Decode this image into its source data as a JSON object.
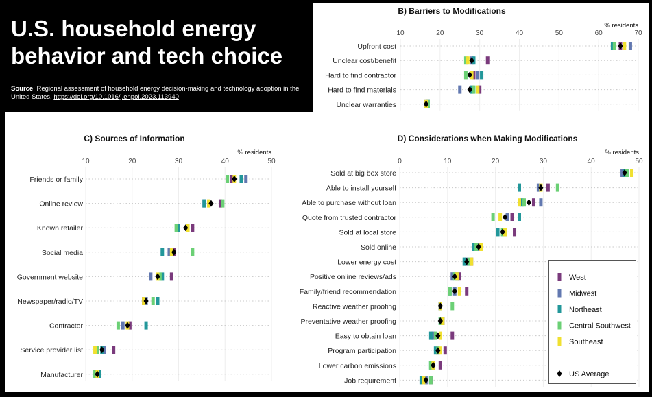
{
  "title": "U.S. household energy behavior and tech choice",
  "source_label": "Source",
  "source_text": ": Regional assessment of household energy decision-making and technology adoption in the United States, ",
  "source_url": "https://doi.org/10.1016/j.enpol.2023.113940",
  "legend": {
    "West": "#7a3a7c",
    "Midwest": "#6278b0",
    "Northeast": "#22979a",
    "Central Southwest": "#6bd075",
    "Southeast": "#f0e030",
    "US Average": "#000000"
  },
  "legend_order": [
    "West",
    "Midwest",
    "Northeast",
    "Central Southwest",
    "Southeast",
    "US Average"
  ],
  "chart_data": [
    {
      "id": "B",
      "type": "scatter",
      "title": "B) Barriers to Modifications",
      "ylabel": "% residents",
      "xlim": [
        10,
        70
      ],
      "ticks": [
        10,
        20,
        30,
        40,
        50,
        60,
        70
      ],
      "categories": [
        "Upfront cost",
        "Unclear cost/benefit",
        "Hard to find contractor",
        "Hard to find materials",
        "Unclear warranties"
      ],
      "series": [
        {
          "name": "West",
          "values": [
            65.5,
            32,
            28.5,
            30,
            17
          ]
        },
        {
          "name": "Midwest",
          "values": [
            68,
            28,
            29.5,
            25,
            16.5
          ]
        },
        {
          "name": "Northeast",
          "values": [
            63.5,
            28.5,
            30.5,
            28,
            17
          ]
        },
        {
          "name": "Central Southwest",
          "values": [
            64,
            26.5,
            26.5,
            28.5,
            17
          ]
        },
        {
          "name": "Southeast",
          "values": [
            66.5,
            27,
            28,
            29.5,
            16.5
          ]
        },
        {
          "name": "US Average",
          "values": [
            65.5,
            28,
            27.5,
            27.5,
            16.5
          ]
        }
      ]
    },
    {
      "id": "C",
      "type": "scatter",
      "title": "C) Sources of Information",
      "ylabel": "% residents",
      "xlim": [
        10,
        50
      ],
      "ticks": [
        10,
        20,
        30,
        40,
        50
      ],
      "categories": [
        "Friends or family",
        "Online review",
        "Known retailer",
        "Social media",
        "Government website",
        "Newspaper/radio/TV",
        "Contractor",
        "Service provider list",
        "Manufacturer"
      ],
      "series": [
        {
          "name": "West",
          "values": [
            41.5,
            39,
            33,
            29,
            28.5,
            22.5,
            19.5,
            16,
            13
          ]
        },
        {
          "name": "Midwest",
          "values": [
            44.5,
            35.5,
            30,
            28,
            24,
            23,
            18,
            14,
            12.5
          ]
        },
        {
          "name": "Northeast",
          "values": [
            43.5,
            35.5,
            30,
            26.5,
            26.5,
            25.5,
            23,
            13.5,
            13
          ]
        },
        {
          "name": "Central Southwest",
          "values": [
            40.5,
            39.5,
            29.5,
            33,
            26,
            24.5,
            17,
            12.5,
            12
          ]
        },
        {
          "name": "Southeast",
          "values": [
            42,
            36.5,
            32,
            28.5,
            25.5,
            22.5,
            19,
            12,
            12.5
          ]
        },
        {
          "name": "US Average",
          "values": [
            42,
            37,
            31.5,
            29,
            25.5,
            23,
            19,
            13.5,
            12.5
          ]
        }
      ]
    },
    {
      "id": "D",
      "type": "scatter",
      "title": "D) Considerations when Making Modifications",
      "ylabel": "% residents",
      "xlim": [
        0,
        50
      ],
      "ticks": [
        0,
        10,
        20,
        30,
        40,
        50
      ],
      "categories": [
        "Sold at big box store",
        "Able to install yourself",
        "Able to purchase without loan",
        "Quote from trusted contractor",
        "Sold at local store",
        "Sold online",
        "Lower energy cost",
        "Positive online reviews/ads",
        "Family/friend recommendation",
        "Reactive weather proofing",
        "Preventative weather proofing",
        "Easy to obtain loan",
        "Program participation",
        "Lower carbon emissions",
        "Job requirement"
      ],
      "series": [
        {
          "name": "West",
          "values": [
            47.5,
            31,
            28,
            23.5,
            24,
            16.5,
            15,
            12.5,
            14,
            8.5,
            9,
            11,
            9.5,
            8.5,
            6.5
          ]
        },
        {
          "name": "Midwest",
          "values": [
            46.5,
            29,
            29.5,
            22.5,
            22,
            16.5,
            14,
            11,
            11.5,
            8.5,
            9,
            7,
            8,
            7,
            5.5
          ]
        },
        {
          "name": "Northeast",
          "values": [
            47,
            25,
            25.5,
            25,
            20.5,
            15.5,
            13.5,
            12,
            10.5,
            8.5,
            8.5,
            6.5,
            7.5,
            6.5,
            4.5
          ]
        },
        {
          "name": "Central Southwest",
          "values": [
            47.5,
            33,
            26,
            19.5,
            21.5,
            16,
            14.5,
            11.5,
            10.5,
            11,
            8.5,
            7.5,
            8,
            6.5,
            6.5
          ]
        },
        {
          "name": "Southeast",
          "values": [
            48.5,
            29.5,
            25,
            21,
            22,
            17,
            15,
            12,
            12.5,
            8.5,
            9,
            8.5,
            8.5,
            7,
            5
          ]
        },
        {
          "name": "US Average",
          "values": [
            47,
            29.5,
            27,
            22,
            21.5,
            16.5,
            14,
            11.5,
            11.5,
            8.5,
            8.5,
            8,
            8,
            7,
            5.5
          ]
        }
      ]
    }
  ]
}
